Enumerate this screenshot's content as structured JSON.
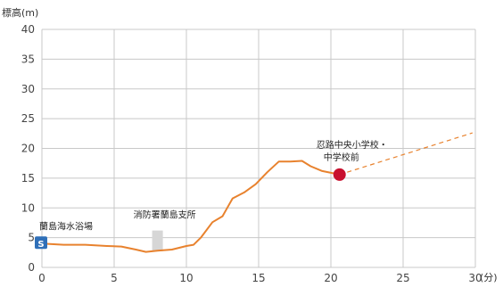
{
  "chart_data": {
    "type": "line",
    "ylabel": "標高(m)",
    "xlabel": "(分)",
    "xlim": [
      0,
      30
    ],
    "ylim": [
      0,
      40
    ],
    "xticks": [
      "0",
      "5",
      "10",
      "15",
      "20",
      "25",
      "30"
    ],
    "yticks": [
      "0",
      "5",
      "10",
      "15",
      "20",
      "25",
      "30",
      "35",
      "40"
    ],
    "grid": true,
    "series": [
      {
        "color": "#e8822e",
        "x": [
          0,
          1.5,
          3,
          4.5,
          5.5,
          6.5,
          7.2,
          8,
          9,
          10,
          10.5,
          11,
          11.8,
          12.5,
          13.2,
          14,
          14.8,
          15.6,
          16.4,
          17.2,
          18,
          18.6,
          19.4,
          20.2,
          20.6
        ],
        "y": [
          4,
          3.8,
          3.8,
          3.6,
          3.5,
          3,
          2.6,
          2.8,
          3,
          3.6,
          3.8,
          5,
          7.6,
          8.6,
          11.6,
          12.6,
          14,
          16,
          17.8,
          17.8,
          17.9,
          17,
          16.2,
          15.8,
          15.6
        ]
      },
      {
        "color": "#e8822e",
        "style": "dashed",
        "x": [
          20.6,
          29.8
        ],
        "y": [
          15.6,
          22.6
        ]
      }
    ],
    "annotations": [
      {
        "text": "蘭島海水浴場",
        "x": 0,
        "y": 4,
        "marker": "S",
        "marker_color": "#2f6fb8"
      },
      {
        "text": "消防署蘭島支所",
        "x": 8,
        "y": 6.2,
        "marker": "bar",
        "marker_color": "#d6d6d6"
      },
      {
        "text": "忍路中央小学校・",
        "text2": "中学校前",
        "x": 20.6,
        "y": 15.6,
        "marker": "circle",
        "marker_color": "#c8102e"
      }
    ]
  }
}
